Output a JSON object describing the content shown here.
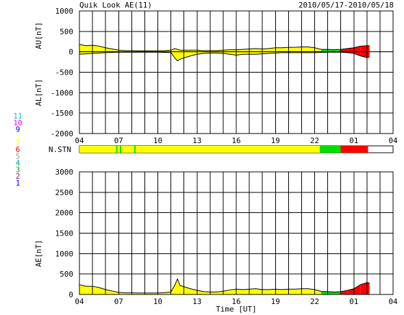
{
  "header": {
    "title": "Quik Look AE(11)",
    "date_range": "2010/05/17-2010/05/18"
  },
  "chart_data": [
    {
      "type": "area",
      "panel": "AU/AL",
      "ylabel_upper": "AU[nT]",
      "ylabel_lower": "AL[nT]",
      "ylim": [
        -2000,
        1000
      ],
      "yticks": [
        "1000",
        "500",
        "0",
        "-500",
        "-1000",
        "-1500",
        "-2000"
      ],
      "xticks": [
        "04",
        "07",
        "10",
        "13",
        "16",
        "19",
        "22",
        "01",
        "04"
      ],
      "xrange_hours": [
        4,
        28
      ],
      "grid": "on",
      "series": [
        {
          "fill_by_station_count": true,
          "x": [
            4.0,
            4.5,
            5.0,
            5.5,
            6.0,
            6.5,
            7.0,
            7.5,
            8.0,
            8.5,
            9.0,
            9.5,
            10.0,
            10.5,
            11.0,
            11.3,
            11.5,
            11.7,
            12.0,
            12.5,
            13.0,
            13.5,
            14.0,
            14.5,
            15.0,
            15.5,
            16.0,
            16.5,
            17.0,
            17.5,
            18.0,
            18.5,
            19.0,
            19.5,
            20.0,
            20.5,
            21.0,
            21.5,
            22.0,
            22.5,
            23.0,
            23.5,
            24.0,
            24.5,
            25.0,
            25.5,
            26.0,
            26.2
          ],
          "au": [
            180,
            150,
            160,
            140,
            100,
            70,
            40,
            30,
            30,
            25,
            25,
            25,
            25,
            30,
            40,
            80,
            60,
            40,
            40,
            40,
            40,
            30,
            30,
            30,
            40,
            50,
            50,
            60,
            70,
            80,
            70,
            80,
            100,
            100,
            110,
            110,
            120,
            120,
            100,
            60,
            60,
            50,
            60,
            80,
            100,
            140,
            150,
            150
          ],
          "al": [
            -60,
            -50,
            -40,
            -30,
            -20,
            -15,
            -10,
            -10,
            -10,
            -10,
            -10,
            -10,
            -10,
            -15,
            -20,
            -150,
            -220,
            -180,
            -150,
            -100,
            -60,
            -40,
            -30,
            -30,
            -40,
            -60,
            -80,
            -60,
            -60,
            -60,
            -50,
            -40,
            -30,
            -20,
            -20,
            -20,
            -20,
            -20,
            -20,
            -15,
            -10,
            -10,
            -10,
            -20,
            -40,
            -100,
            -140,
            -130
          ]
        }
      ]
    },
    {
      "type": "area",
      "panel": "AE",
      "ylabel": "AE[nT]",
      "xlabel": "Time [UT]",
      "ylim": [
        0,
        3000
      ],
      "yticks": [
        "3000",
        "2500",
        "2000",
        "1500",
        "1000",
        "500",
        "0"
      ],
      "xticks": [
        "04",
        "07",
        "10",
        "13",
        "16",
        "19",
        "22",
        "01",
        "04"
      ],
      "xrange_hours": [
        4,
        28
      ],
      "grid": "on",
      "series": [
        {
          "fill_by_station_count": true,
          "x": [
            4.0,
            4.5,
            5.0,
            5.5,
            6.0,
            6.5,
            7.0,
            7.5,
            8.0,
            8.5,
            9.0,
            9.5,
            10.0,
            10.5,
            11.0,
            11.3,
            11.5,
            11.7,
            12.0,
            12.5,
            13.0,
            13.5,
            14.0,
            14.5,
            15.0,
            15.5,
            16.0,
            16.5,
            17.0,
            17.5,
            18.0,
            18.5,
            19.0,
            19.5,
            20.0,
            20.5,
            21.0,
            21.5,
            22.0,
            22.5,
            23.0,
            23.5,
            24.0,
            24.5,
            25.0,
            25.5,
            26.0,
            26.2
          ],
          "ae": [
            240,
            200,
            200,
            170,
            120,
            85,
            50,
            40,
            40,
            35,
            35,
            35,
            35,
            45,
            60,
            230,
            380,
            220,
            190,
            140,
            100,
            70,
            60,
            60,
            80,
            110,
            130,
            120,
            130,
            140,
            120,
            120,
            130,
            120,
            130,
            130,
            140,
            140,
            120,
            75,
            70,
            60,
            70,
            100,
            140,
            240,
            290,
            280
          ]
        }
      ]
    }
  ],
  "station_count": {
    "label": "N.STN",
    "legend": [
      {
        "n": "11",
        "color": "#00c8c8"
      },
      {
        "n": "10",
        "color": "#ff00ff"
      },
      {
        "n": "9",
        "color": "#0000c8"
      },
      {
        "n": "8",
        "color": "#ffffa0"
      },
      {
        "n": "7",
        "color": "#ffff00"
      },
      {
        "n": "6",
        "color": "#ff0000"
      },
      {
        "n": "5",
        "color": "#a0a0a0"
      },
      {
        "n": "4",
        "color": "#00a0a0"
      },
      {
        "n": "3",
        "color": "#00b000"
      },
      {
        "n": "2",
        "color": "#c00080"
      },
      {
        "n": "1",
        "color": "#0000ff"
      }
    ],
    "segments": [
      {
        "from": 4.0,
        "to": 22.4,
        "color": "#ffff00"
      },
      {
        "from": 6.8,
        "to": 6.9,
        "color": "#00e000"
      },
      {
        "from": 7.1,
        "to": 7.2,
        "color": "#00e000"
      },
      {
        "from": 8.2,
        "to": 8.3,
        "color": "#00e000"
      },
      {
        "from": 22.4,
        "to": 24.0,
        "color": "#00e000"
      },
      {
        "from": 24.0,
        "to": 26.1,
        "color": "#ff0000"
      }
    ],
    "line_segments": [
      {
        "from": 4.0,
        "to": 22.4,
        "color": "#ffff00"
      },
      {
        "from": 22.4,
        "to": 24.0,
        "color": "#00e000"
      },
      {
        "from": 24.0,
        "to": 26.2,
        "color": "#ff0000"
      }
    ]
  }
}
